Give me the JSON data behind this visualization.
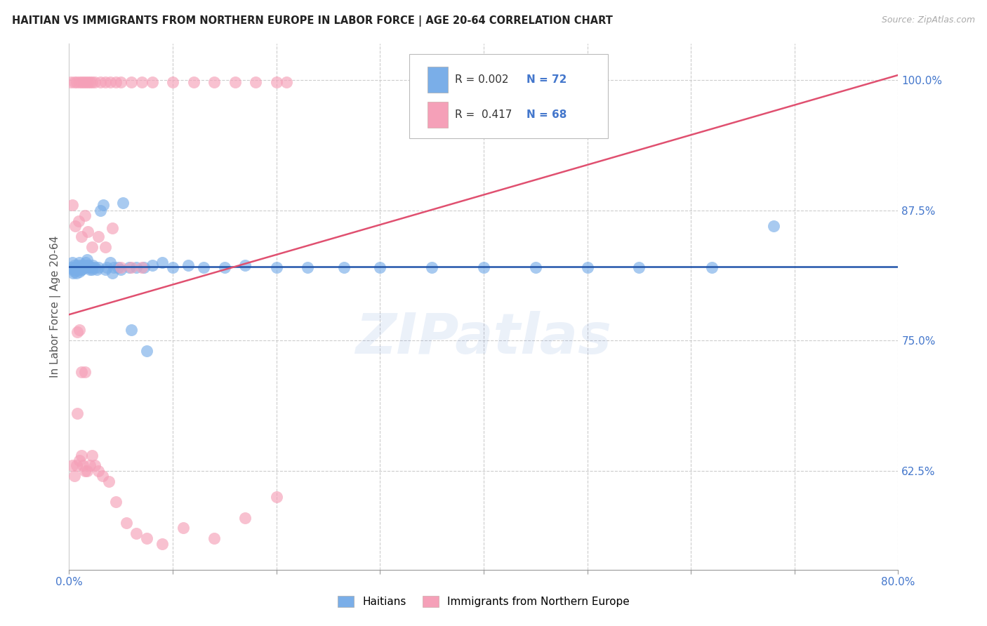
{
  "title": "HAITIAN VS IMMIGRANTS FROM NORTHERN EUROPE IN LABOR FORCE | AGE 20-64 CORRELATION CHART",
  "source": "Source: ZipAtlas.com",
  "ylabel": "In Labor Force | Age 20-64",
  "xlim": [
    0.0,
    0.8
  ],
  "ylim": [
    0.53,
    1.035
  ],
  "xticks": [
    0.0,
    0.1,
    0.2,
    0.3,
    0.4,
    0.5,
    0.6,
    0.7,
    0.8
  ],
  "xticklabels": [
    "0.0%",
    "",
    "",
    "",
    "",
    "",
    "",
    "",
    "80.0%"
  ],
  "yticks": [
    0.625,
    0.75,
    0.875,
    1.0
  ],
  "yticklabels": [
    "62.5%",
    "75.0%",
    "87.5%",
    "100.0%"
  ],
  "blue_R": "0.002",
  "blue_N": "72",
  "pink_R": "0.417",
  "pink_N": "68",
  "blue_color": "#7aaee8",
  "pink_color": "#f5a0b8",
  "blue_line_color": "#2255aa",
  "pink_line_color": "#e05070",
  "watermark": "ZIPatlas",
  "blue_line_y": [
    0.82,
    0.82
  ],
  "pink_line_y0": 0.775,
  "pink_line_y1": 1.005
}
